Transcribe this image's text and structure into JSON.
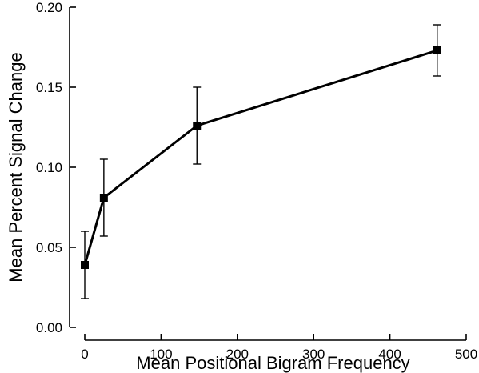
{
  "chart_data": {
    "type": "line",
    "title": "",
    "xlabel": "Mean Positional Bigram Frequency",
    "ylabel": "Mean Percent Signal Change",
    "xlim": [
      0,
      500
    ],
    "ylim": [
      0,
      0.2
    ],
    "x_ticks": [
      0,
      100,
      200,
      300,
      400,
      500
    ],
    "y_ticks": [
      0.0,
      0.05,
      0.1,
      0.15,
      0.2
    ],
    "x_tick_labels": [
      "0",
      "100",
      "200",
      "300",
      "400",
      "500"
    ],
    "y_tick_labels": [
      "0.00",
      "0.05",
      "0.10",
      "0.15",
      "0.20"
    ],
    "grid": false,
    "marker": "square",
    "series": [
      {
        "x": [
          0,
          25,
          147,
          462
        ],
        "y": [
          0.039,
          0.081,
          0.126,
          0.173
        ],
        "error_lower": [
          0.018,
          0.057,
          0.102,
          0.157
        ],
        "error_upper": [
          0.06,
          0.105,
          0.15,
          0.189
        ],
        "color": "#000000"
      }
    ]
  }
}
